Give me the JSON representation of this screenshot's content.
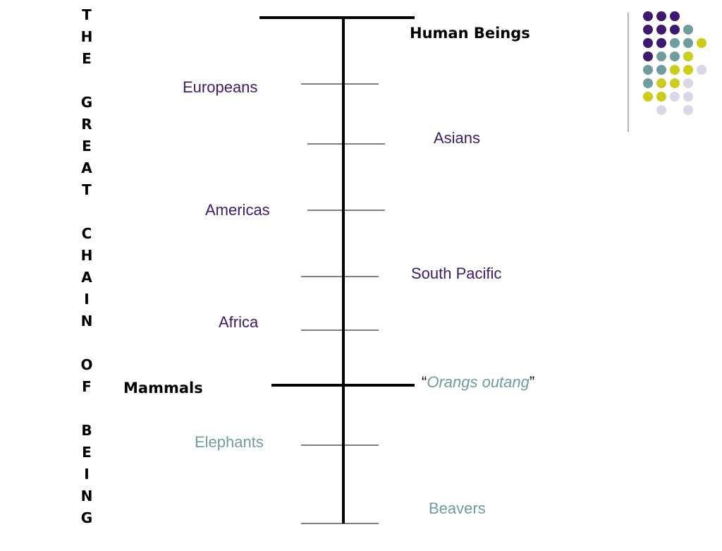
{
  "title_words": [
    "THE",
    "GREAT",
    "CHAIN",
    "OF",
    "BEING"
  ],
  "top_label": "Human Beings",
  "mammals_label": "Mammals",
  "groups": [
    "Europeans",
    "Asians",
    "Americas",
    "South Pacific",
    "Africa"
  ],
  "orang": {
    "open_quote": "“",
    "name": "Orangs outang",
    "close_quote": "”"
  },
  "animals": [
    "Elephants",
    "Beavers"
  ]
}
